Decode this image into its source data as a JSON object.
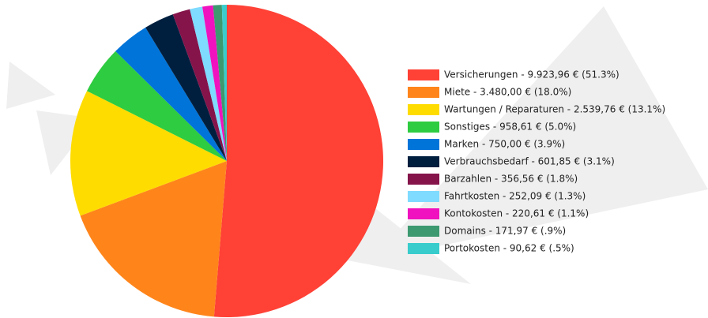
{
  "chart_data": {
    "type": "pie",
    "categories": [
      "Versicherungen - 9.923,96 € (51.3%)",
      "Miete - 3.480,00 € (18.0%)",
      "Wartungen / Reparaturen - 2.539,76 € (13.1%)",
      "Sonstiges - 958,61 € (5.0%)",
      "Marken - 750,00 € (3.9%)",
      "Verbrauchsbedarf - 601,85 € (3.1%)",
      "Barzahlen - 356,56 € (1.8%)",
      "Fahrtkosten - 252,09 € (1.3%)",
      "Kontokosten - 220,61 € (1.1%)",
      "Domains - 171,97 € (.9%)",
      "Portokosten - 90,62 € (.5%)"
    ],
    "values": [
      51.3,
      18.0,
      13.1,
      5.0,
      3.9,
      3.1,
      1.8,
      1.3,
      1.1,
      0.9,
      0.5
    ],
    "colors": [
      "#ff4136",
      "#ff851b",
      "#ffdc00",
      "#2ecc40",
      "#0074d9",
      "#001f3f",
      "#85144b",
      "#7fdbff",
      "#f012be",
      "#3d9970",
      "#39cccc"
    ],
    "legend": "right"
  }
}
